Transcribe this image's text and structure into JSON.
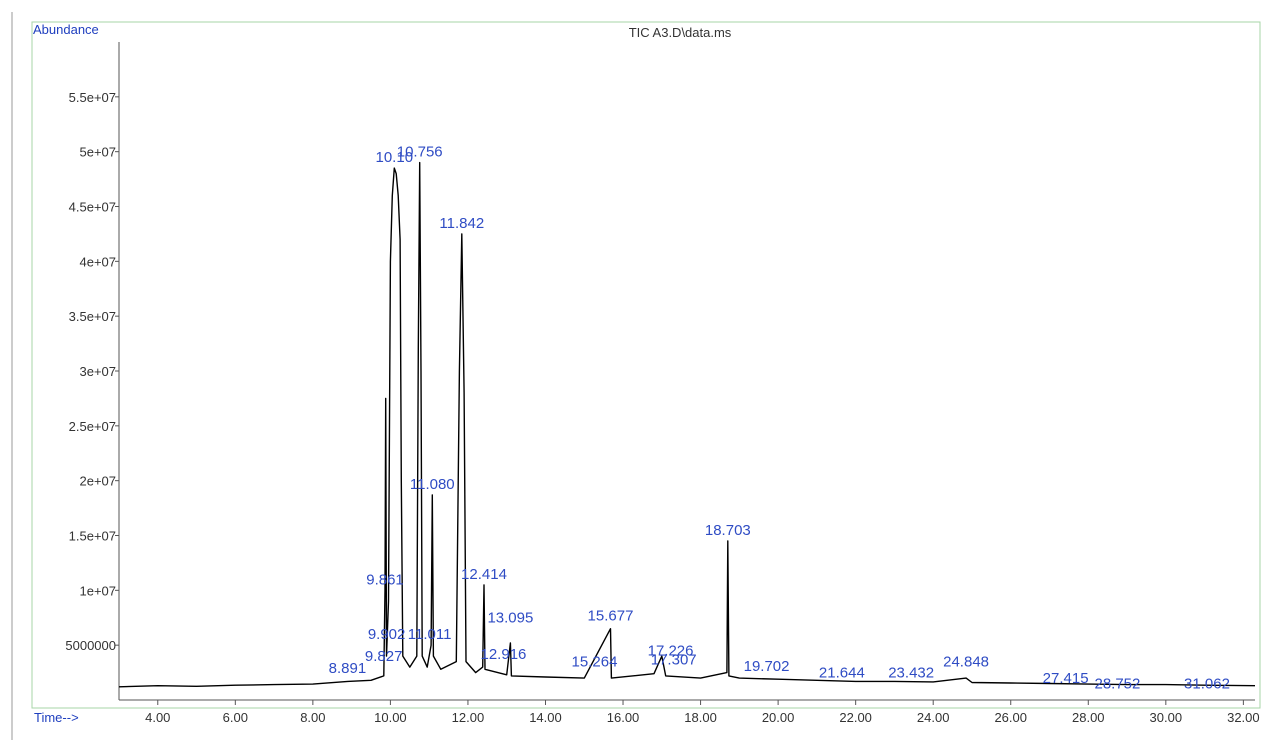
{
  "chart_data": {
    "type": "line",
    "title": "TIC A3.D\\data.ms",
    "ylabel": "Abundance",
    "xlabel": "Time-->",
    "xlim": [
      3.0,
      32.3
    ],
    "ylim": [
      0,
      60000000
    ],
    "y_ticks": [
      5000000,
      10000000,
      15000000,
      20000000,
      25000000,
      30000000,
      35000000,
      40000000,
      45000000,
      50000000,
      55000000
    ],
    "y_tick_labels": [
      "5000000",
      "1e+07",
      "1.5e+07",
      "2e+07",
      "2.5e+07",
      "3e+07",
      "3.5e+07",
      "4e+07",
      "4.5e+07",
      "5e+07",
      "5.5e+07"
    ],
    "x_ticks": [
      4,
      6,
      8,
      10,
      12,
      14,
      16,
      18,
      20,
      22,
      24,
      26,
      28,
      30,
      32
    ],
    "x_tick_labels": [
      "4.00",
      "6.00",
      "8.00",
      "10.00",
      "12.00",
      "14.00",
      "16.00",
      "18.00",
      "20.00",
      "22.00",
      "24.00",
      "26.00",
      "28.00",
      "30.00",
      "32.00"
    ],
    "series": [
      {
        "color": "#000000",
        "points": [
          [
            3.0,
            1200000
          ],
          [
            4.0,
            1300000
          ],
          [
            5.0,
            1250000
          ],
          [
            6.0,
            1350000
          ],
          [
            7.0,
            1400000
          ],
          [
            8.0,
            1450000
          ],
          [
            8.9,
            1700000
          ],
          [
            9.5,
            1800000
          ],
          [
            9.83,
            2200000
          ],
          [
            9.86,
            10000000
          ],
          [
            9.88,
            27500000
          ],
          [
            9.9,
            4000000
          ],
          [
            9.95,
            9000000
          ],
          [
            10.0,
            40000000
          ],
          [
            10.05,
            46000000
          ],
          [
            10.1,
            48500000
          ],
          [
            10.15,
            48000000
          ],
          [
            10.2,
            46000000
          ],
          [
            10.25,
            42000000
          ],
          [
            10.28,
            20000000
          ],
          [
            10.32,
            4000000
          ],
          [
            10.5,
            3000000
          ],
          [
            10.68,
            4000000
          ],
          [
            10.72,
            32000000
          ],
          [
            10.756,
            49000000
          ],
          [
            10.79,
            30000000
          ],
          [
            10.82,
            4000000
          ],
          [
            10.95,
            3000000
          ],
          [
            11.05,
            5000000
          ],
          [
            11.08,
            18700000
          ],
          [
            11.11,
            4000000
          ],
          [
            11.3,
            2800000
          ],
          [
            11.7,
            3500000
          ],
          [
            11.78,
            30000000
          ],
          [
            11.842,
            42500000
          ],
          [
            11.9,
            28000000
          ],
          [
            11.95,
            3500000
          ],
          [
            12.2,
            2500000
          ],
          [
            12.38,
            3000000
          ],
          [
            12.414,
            10500000
          ],
          [
            12.44,
            2800000
          ],
          [
            13.0,
            2300000
          ],
          [
            13.095,
            5200000
          ],
          [
            13.12,
            2200000
          ],
          [
            14.0,
            2100000
          ],
          [
            15.0,
            2000000
          ],
          [
            15.677,
            6500000
          ],
          [
            15.7,
            2000000
          ],
          [
            16.8,
            2400000
          ],
          [
            17.0,
            4000000
          ],
          [
            17.1,
            2200000
          ],
          [
            18.0,
            2000000
          ],
          [
            18.68,
            2500000
          ],
          [
            18.703,
            14500000
          ],
          [
            18.73,
            2200000
          ],
          [
            19.0,
            2000000
          ],
          [
            20.0,
            1900000
          ],
          [
            21.0,
            1800000
          ],
          [
            22.0,
            1700000
          ],
          [
            23.0,
            1700000
          ],
          [
            24.0,
            1650000
          ],
          [
            24.848,
            2000000
          ],
          [
            25.0,
            1600000
          ],
          [
            26.0,
            1550000
          ],
          [
            27.0,
            1500000
          ],
          [
            28.0,
            1450000
          ],
          [
            29.0,
            1400000
          ],
          [
            30.0,
            1400000
          ],
          [
            31.0,
            1350000
          ],
          [
            32.3,
            1300000
          ]
        ]
      }
    ],
    "peak_labels": [
      {
        "text": "10.10",
        "x": 10.1,
        "y": 48500000
      },
      {
        "text": "10.756",
        "x": 10.756,
        "y": 49000000
      },
      {
        "text": "11.842",
        "x": 11.842,
        "y": 42500000
      },
      {
        "text": "11.080",
        "x": 11.08,
        "y": 18700000
      },
      {
        "text": "18.703",
        "x": 18.703,
        "y": 14500000
      },
      {
        "text": "9.861",
        "x": 9.861,
        "y": 10000000
      },
      {
        "text": "12.414",
        "x": 12.414,
        "y": 10500000
      },
      {
        "text": "13.095",
        "x": 13.095,
        "y": 6500000
      },
      {
        "text": "15.677",
        "x": 15.677,
        "y": 6700000
      },
      {
        "text": "9.902",
        "x": 9.902,
        "y": 5000000
      },
      {
        "text": "11.011",
        "x": 11.011,
        "y": 5000000
      },
      {
        "text": "9.827",
        "x": 9.827,
        "y": 3000000
      },
      {
        "text": "12.916",
        "x": 12.916,
        "y": 3200000
      },
      {
        "text": "17.226",
        "x": 17.226,
        "y": 3500000
      },
      {
        "text": "17.307",
        "x": 17.307,
        "y": 2700000
      },
      {
        "text": "15.264",
        "x": 15.264,
        "y": 2500000
      },
      {
        "text": "19.702",
        "x": 19.702,
        "y": 2100000
      },
      {
        "text": "8.891",
        "x": 8.891,
        "y": 1900000
      },
      {
        "text": "24.848",
        "x": 24.848,
        "y": 2500000
      },
      {
        "text": "23.432",
        "x": 23.432,
        "y": 1500000
      },
      {
        "text": "21.644",
        "x": 21.644,
        "y": 1500000
      },
      {
        "text": "27.415",
        "x": 27.415,
        "y": 1000000
      },
      {
        "text": "28.752",
        "x": 28.752,
        "y": 500000
      },
      {
        "text": "31.062",
        "x": 31.062,
        "y": 500000
      }
    ]
  }
}
